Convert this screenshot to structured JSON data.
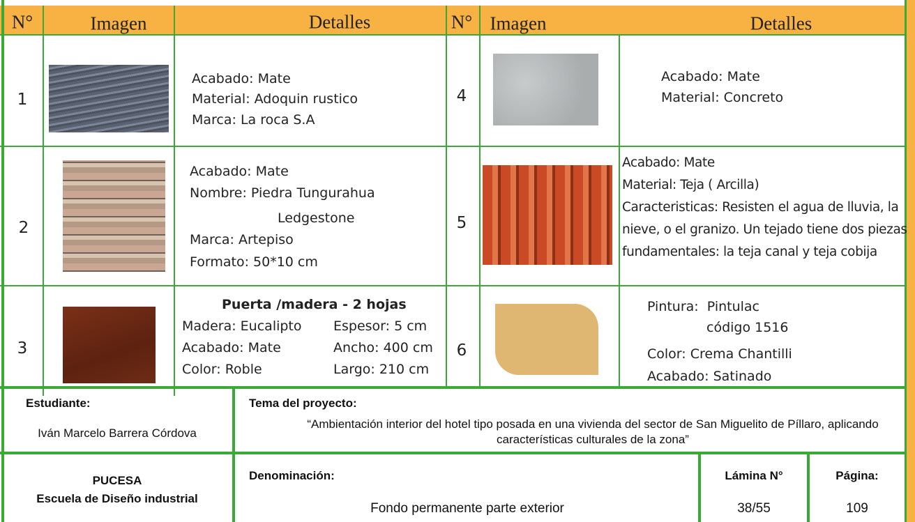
{
  "header": {
    "columns": [
      "N°",
      "Imagen",
      "Detalles",
      "N°",
      "Imagen",
      "Detalles"
    ]
  },
  "items": [
    {
      "number": "1",
      "details": [
        "Acabado: Mate",
        "Material: Adoquin rustico",
        "Marca: La roca S.A"
      ]
    },
    {
      "number": "2",
      "details": [
        "Acabado: Mate",
        "Nombre: Piedra Tungurahua",
        "Ledgestone",
        "Marca: Artepiso",
        "Formato: 50*10 cm"
      ]
    },
    {
      "number": "3",
      "title": "Puerta /madera - 2 hojas",
      "details_left": [
        "Madera: Eucalipto",
        "Acabado: Mate",
        "Color: Roble"
      ],
      "details_right": [
        "Espesor: 5 cm",
        "Ancho: 400 cm",
        "Largo: 210 cm"
      ]
    },
    {
      "number": "4",
      "details": [
        "Acabado: Mate",
        "Material: Concreto"
      ]
    },
    {
      "number": "5",
      "details": [
        "Acabado: Mate",
        "Material: Teja ( Arcilla)",
        "Caracteristicas: Resisten el agua de lluvia, la nieve, o el granizo. Un tejado tiene dos piezas fundamentales: la teja canal y teja cobija"
      ]
    },
    {
      "number": "6",
      "details": [
        "Pintura:  Pintulac",
        "código 1516",
        "Color: Crema Chantilli",
        "Acabado: Satinado"
      ]
    }
  ],
  "footer": {
    "student_label": "Estudiante:",
    "student": "Iván Marcelo Barrera Córdova",
    "theme_label": "Tema del proyecto:",
    "theme": "“Ambientación interior del hotel tipo posada en una vivienda del sector de San Miguelito de Píllaro, aplicando características culturales de la zona”",
    "institution": [
      "PUCESA",
      "Escuela de Diseño industrial"
    ],
    "denomination_label": "Denominación:",
    "denomination": "Fondo permanente parte exterior",
    "sheet_label": "Lámina N°",
    "sheet": "38/55",
    "page_label": "Página:",
    "page": "109"
  }
}
